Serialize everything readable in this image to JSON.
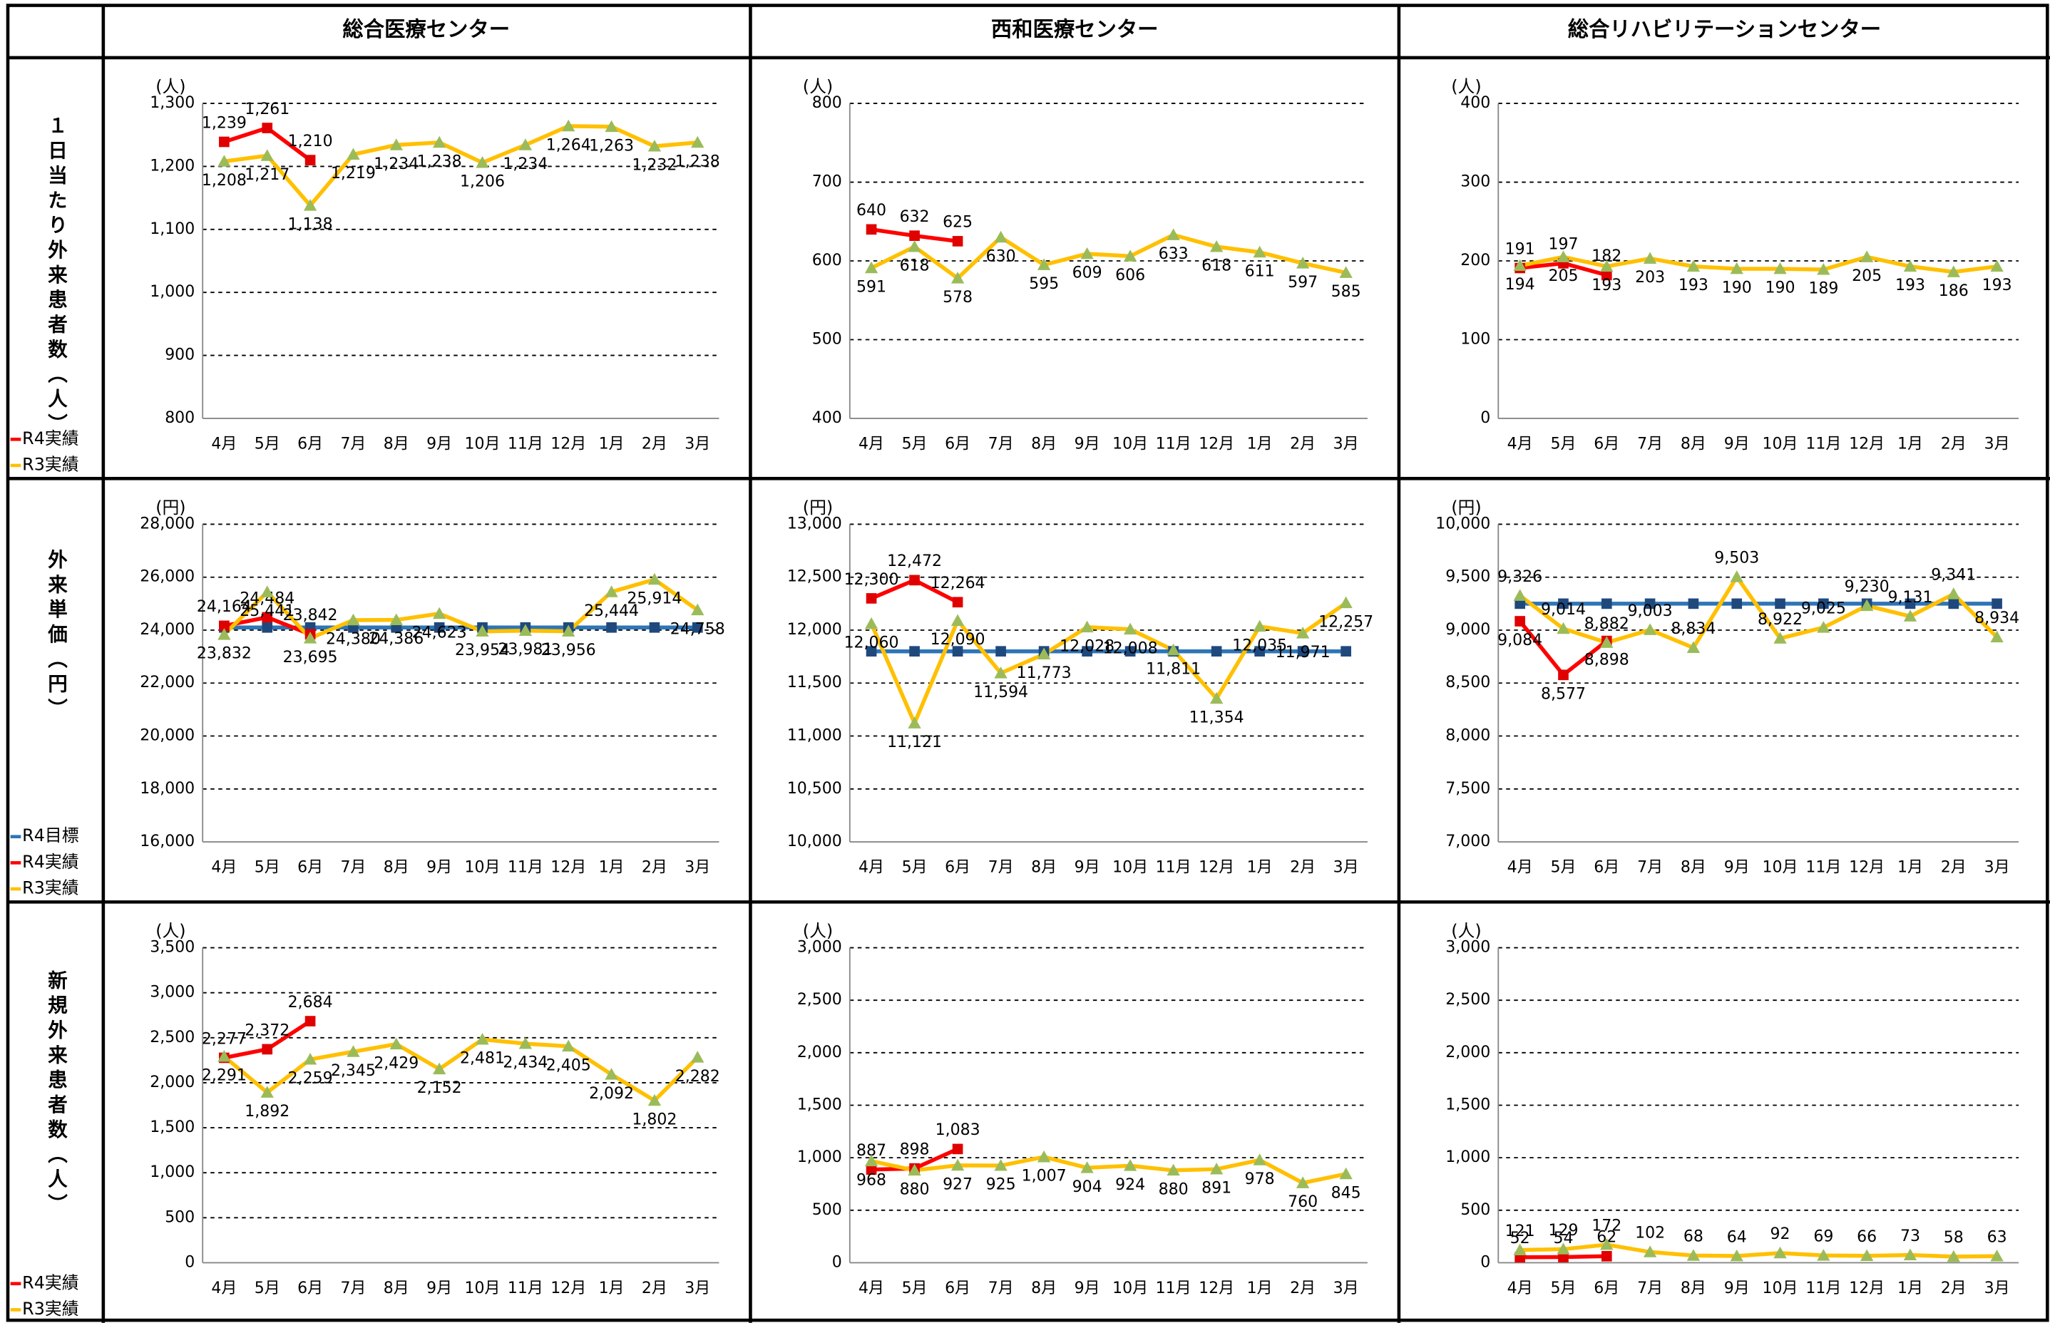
{
  "columns": [
    "総合医療センター",
    "西和医療センター",
    "総合リハビリテーションセンター"
  ],
  "rows": [
    "１日当たり外来患者数（人）",
    "外来単価（円）",
    "新規外来患者数（人）"
  ],
  "chart_data": [
    {
      "type": "line",
      "unit": "(人)",
      "categories": [
        "4月",
        "5月",
        "6月",
        "7月",
        "8月",
        "9月",
        "10月",
        "11月",
        "12月",
        "1月",
        "2月",
        "3月"
      ],
      "ylim": [
        800,
        1300
      ],
      "yticks": [
        800,
        900,
        {
          "value": 1000,
          "label": "1,000"
        },
        {
          "value": 1100,
          "label": "1,100"
        },
        {
          "value": 1200,
          "label": "1,200"
        },
        {
          "value": 1300,
          "label": "1,300"
        }
      ],
      "grid": true,
      "series": [
        {
          "name": "R4実績",
          "color": "#ff0000",
          "marker": "square",
          "marker_color": "#e00000",
          "data_labels": true,
          "label_position": "above",
          "values": [
            1239,
            1261,
            1210,
            null,
            null,
            null,
            null,
            null,
            null,
            null,
            null,
            null
          ],
          "value_labels": [
            "1,239",
            "1,261",
            "1,210",
            null,
            null,
            null,
            null,
            null,
            null,
            null,
            null,
            null
          ]
        },
        {
          "name": "R3実績",
          "color": "#ffc000",
          "marker": "triangle",
          "marker_color": "#9bbb59",
          "data_labels": true,
          "label_position": "below",
          "values": [
            1208,
            1217,
            1138,
            1219,
            1234,
            1238,
            1206,
            1234,
            1264,
            1263,
            1232,
            1238
          ],
          "value_labels": [
            "1,208",
            "1,217",
            "1,138",
            "1,219",
            "1,234",
            "1,238",
            "1,206",
            "1,234",
            "1,264",
            "1,263",
            "1,232",
            "1,238"
          ]
        }
      ]
    },
    {
      "type": "line",
      "unit": "(人)",
      "categories": [
        "4月",
        "5月",
        "6月",
        "7月",
        "8月",
        "9月",
        "10月",
        "11月",
        "12月",
        "1月",
        "2月",
        "3月"
      ],
      "ylim": [
        400,
        800
      ],
      "yticks": [
        400,
        500,
        600,
        700,
        800
      ],
      "grid": true,
      "series": [
        {
          "name": "R4実績",
          "color": "#ff0000",
          "marker": "square",
          "marker_color": "#e00000",
          "data_labels": true,
          "label_position": "above",
          "values": [
            640,
            632,
            625,
            null,
            null,
            null,
            null,
            null,
            null,
            null,
            null,
            null
          ]
        },
        {
          "name": "R3実績",
          "color": "#ffc000",
          "marker": "triangle",
          "marker_color": "#9bbb59",
          "data_labels": true,
          "label_position": "below",
          "values": [
            591,
            618,
            578,
            630,
            595,
            609,
            606,
            633,
            618,
            611,
            597,
            585
          ]
        }
      ]
    },
    {
      "type": "line",
      "unit": "(人)",
      "categories": [
        "4月",
        "5月",
        "6月",
        "7月",
        "8月",
        "9月",
        "10月",
        "11月",
        "12月",
        "1月",
        "2月",
        "3月"
      ],
      "ylim": [
        0,
        400
      ],
      "yticks": [
        0,
        100,
        200,
        300,
        400
      ],
      "grid": true,
      "series": [
        {
          "name": "R4実績",
          "color": "#ff0000",
          "marker": "square",
          "marker_color": "#e00000",
          "data_labels": true,
          "label_position": "above",
          "values": [
            191,
            197,
            182,
            null,
            null,
            null,
            null,
            null,
            null,
            null,
            null,
            null
          ]
        },
        {
          "name": "R3実績",
          "color": "#ffc000",
          "marker": "triangle",
          "marker_color": "#9bbb59",
          "data_labels": true,
          "label_position": "below",
          "values": [
            194,
            205,
            193,
            203,
            193,
            190,
            190,
            189,
            205,
            193,
            186,
            193
          ]
        }
      ]
    },
    {
      "type": "line",
      "unit": "(円)",
      "categories": [
        "4月",
        "5月",
        "6月",
        "7月",
        "8月",
        "9月",
        "10月",
        "11月",
        "12月",
        "1月",
        "2月",
        "3月"
      ],
      "ylim": [
        16000,
        28000
      ],
      "yticks": [
        {
          "value": 16000,
          "label": "16,000"
        },
        {
          "value": 18000,
          "label": "18,000"
        },
        {
          "value": 20000,
          "label": "20,000"
        },
        {
          "value": 22000,
          "label": "22,000"
        },
        {
          "value": 24000,
          "label": "24,000"
        },
        {
          "value": 26000,
          "label": "26,000"
        },
        {
          "value": 28000,
          "label": "28,000"
        }
      ],
      "grid": true,
      "series": [
        {
          "name": "R4目標",
          "color": "#2e75b6",
          "marker": "square",
          "marker_color": "#1f497d",
          "data_labels": false,
          "values": [
            24100,
            24100,
            24100,
            24100,
            24100,
            24100,
            24100,
            24100,
            24100,
            24100,
            24100,
            24100
          ]
        },
        {
          "name": "R4実績",
          "color": "#ff0000",
          "marker": "square",
          "marker_color": "#e00000",
          "data_labels": true,
          "label_position": "above",
          "values": [
            24164,
            24484,
            23842,
            null,
            null,
            null,
            null,
            null,
            null,
            null,
            null,
            null
          ],
          "value_labels": [
            "24,164",
            "24,484",
            "23,842",
            null,
            null,
            null,
            null,
            null,
            null,
            null,
            null,
            null
          ]
        },
        {
          "name": "R3実績",
          "color": "#ffc000",
          "marker": "triangle",
          "marker_color": "#9bbb59",
          "data_labels": true,
          "label_position": "below",
          "values": [
            23832,
            25441,
            23695,
            24380,
            24386,
            24623,
            23954,
            23981,
            23956,
            25444,
            25914,
            24758
          ],
          "value_labels": [
            "23,832",
            "25,441",
            "23,695",
            "24,380",
            "24,386",
            "24,623",
            "23,954",
            "23,981",
            "23,956",
            "25,444",
            "25,914",
            "24,758"
          ]
        }
      ]
    },
    {
      "type": "line",
      "unit": "(円)",
      "categories": [
        "4月",
        "5月",
        "6月",
        "7月",
        "8月",
        "9月",
        "10月",
        "11月",
        "12月",
        "1月",
        "2月",
        "3月"
      ],
      "ylim": [
        10000,
        13000
      ],
      "yticks": [
        {
          "value": 10000,
          "label": "10,000"
        },
        {
          "value": 10500,
          "label": "10,500"
        },
        {
          "value": 11000,
          "label": "11,000"
        },
        {
          "value": 11500,
          "label": "11,500"
        },
        {
          "value": 12000,
          "label": "12,000"
        },
        {
          "value": 12500,
          "label": "12,500"
        },
        {
          "value": 13000,
          "label": "13,000"
        }
      ],
      "grid": true,
      "series": [
        {
          "name": "R4目標",
          "color": "#2e75b6",
          "marker": "square",
          "marker_color": "#1f497d",
          "data_labels": false,
          "values": [
            11800,
            11800,
            11800,
            11800,
            11800,
            11800,
            11800,
            11800,
            11800,
            11800,
            11800,
            11800
          ]
        },
        {
          "name": "R4実績",
          "color": "#ff0000",
          "marker": "square",
          "marker_color": "#e00000",
          "data_labels": true,
          "label_position": "above",
          "values": [
            12300,
            12472,
            12264,
            null,
            null,
            null,
            null,
            null,
            null,
            null,
            null,
            null
          ],
          "value_labels": [
            "12,300",
            "12,472",
            "12,264",
            null,
            null,
            null,
            null,
            null,
            null,
            null,
            null,
            null
          ]
        },
        {
          "name": "R3実績",
          "color": "#ffc000",
          "marker": "triangle",
          "marker_color": "#9bbb59",
          "data_labels": true,
          "label_position": "below",
          "values": [
            12060,
            11121,
            12090,
            11594,
            11773,
            12028,
            12008,
            11811,
            11354,
            12035,
            11971,
            12257
          ],
          "value_labels": [
            "12,060",
            "11,121",
            "12,090",
            "11,594",
            "11,773",
            "12,028",
            "12,008",
            "11,811",
            "11,354",
            "12,035",
            "11,971",
            "12,257"
          ]
        }
      ]
    },
    {
      "type": "line",
      "unit": "(円)",
      "categories": [
        "4月",
        "5月",
        "6月",
        "7月",
        "8月",
        "9月",
        "10月",
        "11月",
        "12月",
        "1月",
        "2月",
        "3月"
      ],
      "ylim": [
        7000,
        10000
      ],
      "yticks": [
        {
          "value": 7000,
          "label": "7,000"
        },
        {
          "value": 7500,
          "label": "7,500"
        },
        {
          "value": 8000,
          "label": "8,000"
        },
        {
          "value": 8500,
          "label": "8,500"
        },
        {
          "value": 9000,
          "label": "9,000"
        },
        {
          "value": 9500,
          "label": "9,500"
        },
        {
          "value": 10000,
          "label": "10,000"
        }
      ],
      "grid": true,
      "series": [
        {
          "name": "R4目標",
          "color": "#2e75b6",
          "marker": "square",
          "marker_color": "#1f497d",
          "data_labels": false,
          "values": [
            9250,
            9250,
            9250,
            9250,
            9250,
            9250,
            9250,
            9250,
            9250,
            9250,
            9250,
            9250
          ]
        },
        {
          "name": "R4実績",
          "color": "#ff0000",
          "marker": "square",
          "marker_color": "#e00000",
          "data_labels": true,
          "label_position": "below",
          "values": [
            9084,
            8577,
            8898,
            null,
            null,
            null,
            null,
            null,
            null,
            null,
            null,
            null
          ],
          "value_labels": [
            "9,084",
            "8,577",
            "8,898",
            null,
            null,
            null,
            null,
            null,
            null,
            null,
            null,
            null
          ]
        },
        {
          "name": "R3実績",
          "color": "#ffc000",
          "marker": "triangle",
          "marker_color": "#9bbb59",
          "data_labels": true,
          "label_position": "above",
          "values": [
            9326,
            9014,
            8882,
            9003,
            8834,
            9503,
            8922,
            9025,
            9230,
            9131,
            9341,
            8934
          ],
          "value_labels": [
            "9,326",
            "9,014",
            "8,882",
            "9,003",
            "8,834",
            "9,503",
            "8,922",
            "9,025",
            "9,230",
            "9,131",
            "9,341",
            "8,934"
          ]
        }
      ]
    },
    {
      "type": "line",
      "unit": "(人)",
      "categories": [
        "4月",
        "5月",
        "6月",
        "7月",
        "8月",
        "9月",
        "10月",
        "11月",
        "12月",
        "1月",
        "2月",
        "3月"
      ],
      "ylim": [
        0,
        3500
      ],
      "yticks": [
        0,
        500,
        {
          "value": 1000,
          "label": "1,000"
        },
        {
          "value": 1500,
          "label": "1,500"
        },
        {
          "value": 2000,
          "label": "2,000"
        },
        {
          "value": 2500,
          "label": "2,500"
        },
        {
          "value": 3000,
          "label": "3,000"
        },
        {
          "value": 3500,
          "label": "3,500"
        }
      ],
      "grid": true,
      "series": [
        {
          "name": "R4実績",
          "color": "#ff0000",
          "marker": "square",
          "marker_color": "#e00000",
          "data_labels": true,
          "label_position": "above",
          "values": [
            2277,
            2372,
            2684,
            null,
            null,
            null,
            null,
            null,
            null,
            null,
            null,
            null
          ],
          "value_labels": [
            "2,277",
            "2,372",
            "2,684",
            null,
            null,
            null,
            null,
            null,
            null,
            null,
            null,
            null
          ]
        },
        {
          "name": "R3実績",
          "color": "#ffc000",
          "marker": "triangle",
          "marker_color": "#9bbb59",
          "data_labels": true,
          "label_position": "below",
          "values": [
            2291,
            1892,
            2259,
            2345,
            2429,
            2152,
            2481,
            2434,
            2405,
            2092,
            1802,
            2282
          ],
          "value_labels": [
            "2,291",
            "1,892",
            "2,259",
            "2,345",
            "2,429",
            "2,152",
            "2,481",
            "2,434",
            "2,405",
            "2,092",
            "1,802",
            "2,282"
          ]
        }
      ]
    },
    {
      "type": "line",
      "unit": "(人)",
      "categories": [
        "4月",
        "5月",
        "6月",
        "7月",
        "8月",
        "9月",
        "10月",
        "11月",
        "12月",
        "1月",
        "2月",
        "3月"
      ],
      "ylim": [
        0,
        3000
      ],
      "yticks": [
        0,
        500,
        {
          "value": 1000,
          "label": "1,000"
        },
        {
          "value": 1500,
          "label": "1,500"
        },
        {
          "value": 2000,
          "label": "2,000"
        },
        {
          "value": 2500,
          "label": "2,500"
        },
        {
          "value": 3000,
          "label": "3,000"
        }
      ],
      "grid": true,
      "series": [
        {
          "name": "R4実績",
          "color": "#ff0000",
          "marker": "square",
          "marker_color": "#e00000",
          "data_labels": true,
          "label_position": "above",
          "values": [
            887,
            898,
            1083,
            null,
            null,
            null,
            null,
            null,
            null,
            null,
            null,
            null
          ],
          "value_labels": [
            "887",
            "898",
            "1,083",
            null,
            null,
            null,
            null,
            null,
            null,
            null,
            null,
            null
          ]
        },
        {
          "name": "R3実績",
          "color": "#ffc000",
          "marker": "triangle",
          "marker_color": "#9bbb59",
          "data_labels": true,
          "label_position": "below",
          "values": [
            968,
            880,
            927,
            925,
            1007,
            904,
            924,
            880,
            891,
            978,
            760,
            845
          ],
          "value_labels": [
            "968",
            "880",
            "927",
            "925",
            "1,007",
            "904",
            "924",
            "880",
            "891",
            "978",
            "760",
            "845"
          ]
        }
      ]
    },
    {
      "type": "line",
      "unit": "(人)",
      "categories": [
        "4月",
        "5月",
        "6月",
        "7月",
        "8月",
        "9月",
        "10月",
        "11月",
        "12月",
        "1月",
        "2月",
        "3月"
      ],
      "ylim": [
        0,
        3000
      ],
      "yticks": [
        0,
        500,
        {
          "value": 1000,
          "label": "1,000"
        },
        {
          "value": 1500,
          "label": "1,500"
        },
        {
          "value": 2000,
          "label": "2,000"
        },
        {
          "value": 2500,
          "label": "2,500"
        },
        {
          "value": 3000,
          "label": "3,000"
        }
      ],
      "grid": true,
      "series": [
        {
          "name": "R4実績",
          "color": "#ff0000",
          "marker": "square",
          "marker_color": "#e00000",
          "data_labels": true,
          "label_position": "above",
          "values": [
            52,
            54,
            62,
            null,
            null,
            null,
            null,
            null,
            null,
            null,
            null,
            null
          ]
        },
        {
          "name": "R3実績",
          "color": "#ffc000",
          "marker": "triangle",
          "marker_color": "#9bbb59",
          "data_labels": true,
          "label_position": "above",
          "values": [
            121,
            129,
            172,
            102,
            68,
            64,
            92,
            69,
            66,
            73,
            58,
            63
          ]
        }
      ]
    }
  ]
}
